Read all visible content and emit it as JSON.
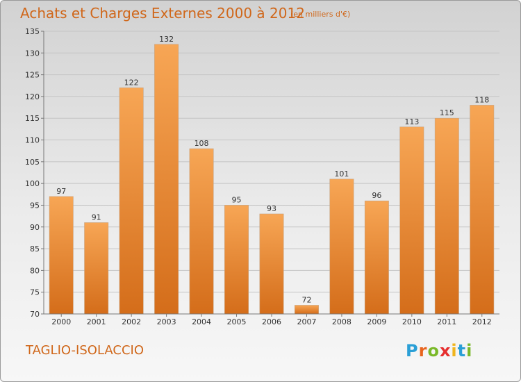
{
  "title": "Achats et Charges Externes 2000 à 2012",
  "subtitle": "(en milliers d'€)",
  "commune": "TAGLIO-ISOLACCIO",
  "logo": {
    "letters": [
      "P",
      "r",
      "o",
      "x",
      "i",
      "t",
      "i"
    ],
    "colors": [
      "#2a9fd6",
      "#e8641e",
      "#7ab929",
      "#e62e2e",
      "#f0b51e",
      "#2a9fd6",
      "#7ab929"
    ]
  },
  "colors": {
    "accent": "#d0671a",
    "bar_top": "#f7a655",
    "bar_bottom": "#d46d1a"
  },
  "chart_data": {
    "type": "bar",
    "categories": [
      "2000",
      "2001",
      "2002",
      "2003",
      "2004",
      "2005",
      "2006",
      "2007",
      "2008",
      "2009",
      "2010",
      "2011",
      "2012"
    ],
    "values": [
      97,
      91,
      122,
      132,
      108,
      95,
      93,
      72,
      101,
      96,
      113,
      115,
      118
    ],
    "title": "Achats et Charges Externes 2000 à 2012",
    "unit": "(en milliers d'€)",
    "xlabel": "",
    "ylabel": "",
    "ylim": [
      70,
      135
    ],
    "yticks": [
      70,
      75,
      80,
      85,
      90,
      95,
      100,
      105,
      110,
      115,
      120,
      125,
      130,
      135
    ],
    "grid": true,
    "legend": "none"
  }
}
